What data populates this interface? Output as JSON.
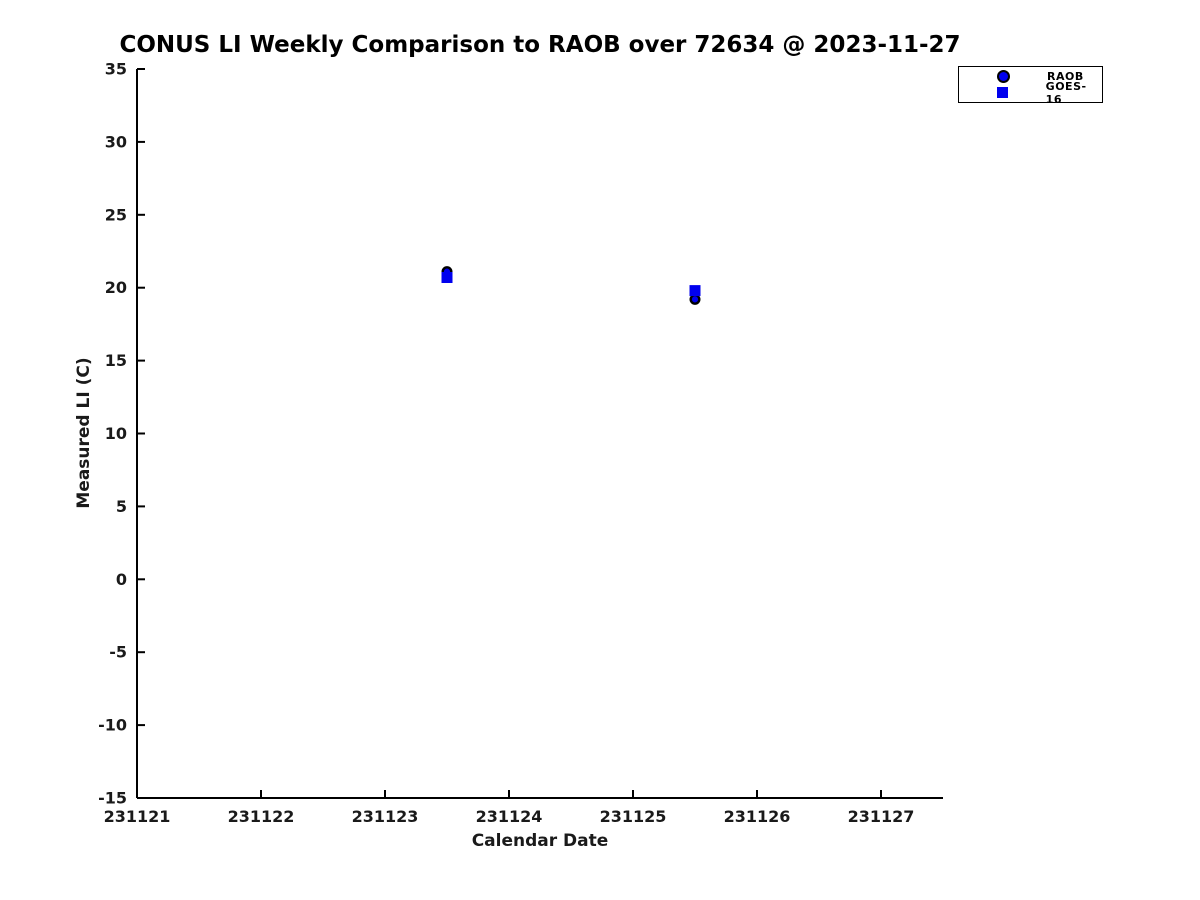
{
  "chart_data": {
    "type": "scatter",
    "title": "CONUS LI Weekly Comparison to RAOB over 72634 @ 2023-11-27",
    "xlabel": "Calendar Date",
    "ylabel": "Measured LI (C)",
    "xlim": [
      231121,
      231127.5
    ],
    "ylim": [
      -15,
      35
    ],
    "x_ticks": [
      "231121",
      "231122",
      "231123",
      "231124",
      "231125",
      "231126",
      "231127"
    ],
    "y_ticks": [
      "-15",
      "-10",
      "-5",
      "0",
      "5",
      "10",
      "15",
      "20",
      "25",
      "30",
      "35"
    ],
    "grid": false,
    "legend_position": "top-right",
    "background_color": "#ffffff",
    "axis_color": "#000000",
    "series": [
      {
        "name": "RAOB",
        "marker": "circle",
        "color": "#0000EE",
        "edge_color": "#000000",
        "points": [
          {
            "x": 231123.5,
            "y": 21.1
          },
          {
            "x": 231125.5,
            "y": 19.2
          }
        ]
      },
      {
        "name": "GOES-16",
        "marker": "square",
        "color": "#0000EE",
        "points": [
          {
            "x": 231123.5,
            "y": 20.7
          },
          {
            "x": 231125.5,
            "y": 19.8
          }
        ]
      }
    ]
  }
}
